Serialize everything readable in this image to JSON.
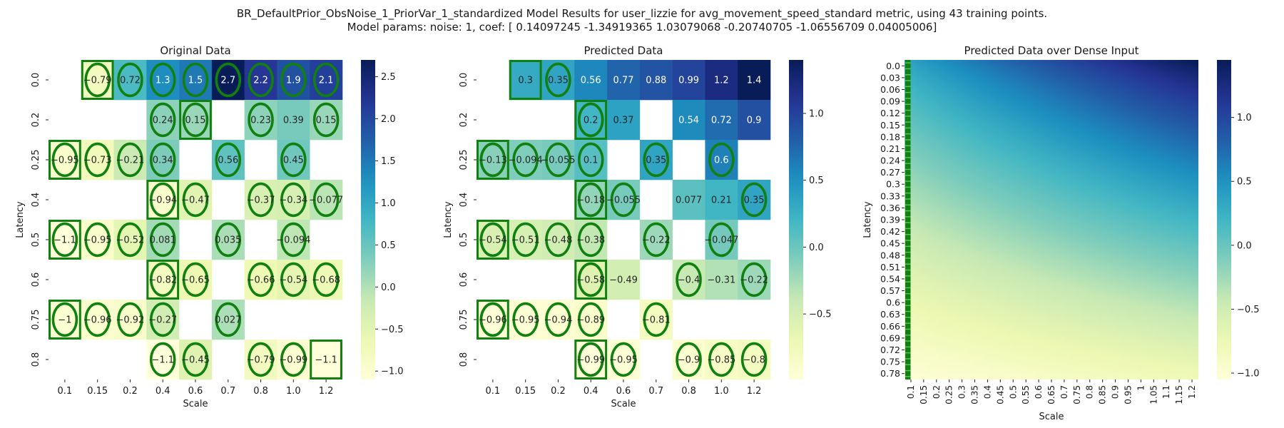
{
  "figure": {
    "title_line1": "BR_DefaultPrior_ObsNoise_1_PriorVar_1_standardized Model Results for user_lizzie for avg_movement_speed_standard metric, using 43 training points.",
    "title_line2": "Model params: noise: 1, coef: [ 0.14097245 -1.34919365  1.03079068 -0.20740705 -1.06556709  0.04005006]"
  },
  "colormap": {
    "name": "YlGnBu",
    "stops": [
      "#ffffd9",
      "#edf8b1",
      "#c7e9b4",
      "#7fcdbb",
      "#41b6c4",
      "#1d91c0",
      "#225ea8",
      "#253494",
      "#081d58"
    ]
  },
  "marker_color": "#108010",
  "chart_data": [
    {
      "type": "heatmap",
      "title": "Original Data",
      "xlabel": "Scale",
      "ylabel": "Latency",
      "x_categories": [
        "0.1",
        "0.15",
        "0.2",
        "0.4",
        "0.6",
        "0.7",
        "0.8",
        "1.0",
        "1.2"
      ],
      "y_categories": [
        "0.0",
        "0.2",
        "0.25",
        "0.4",
        "0.5",
        "0.6",
        "0.75",
        "0.8"
      ],
      "values": [
        [
          null,
          -0.79,
          0.72,
          1.3,
          1.5,
          2.7,
          2.2,
          1.9,
          2.1
        ],
        [
          null,
          null,
          null,
          0.24,
          0.15,
          null,
          0.23,
          0.39,
          0.15
        ],
        [
          -0.95,
          -0.73,
          -0.21,
          0.34,
          null,
          0.56,
          null,
          0.45,
          null
        ],
        [
          null,
          null,
          null,
          -0.94,
          -0.47,
          null,
          -0.37,
          -0.34,
          -0.077
        ],
        [
          -1.1,
          -0.95,
          -0.52,
          0.081,
          null,
          0.035,
          null,
          -0.094,
          null
        ],
        [
          null,
          null,
          null,
          -0.82,
          -0.65,
          null,
          -0.66,
          -0.54,
          -0.68
        ],
        [
          -1,
          -0.96,
          -0.92,
          -0.27,
          null,
          0.027,
          null,
          null,
          null
        ],
        [
          null,
          null,
          null,
          -1.1,
          -0.45,
          null,
          -0.79,
          -0.99,
          -1.1
        ]
      ],
      "circles": [
        [
          0,
          2
        ],
        [
          0,
          3
        ],
        [
          0,
          4
        ],
        [
          0,
          5
        ],
        [
          0,
          6
        ],
        [
          0,
          7
        ],
        [
          0,
          8
        ],
        [
          1,
          3
        ],
        [
          1,
          6
        ],
        [
          1,
          8
        ],
        [
          2,
          1
        ],
        [
          2,
          2
        ],
        [
          2,
          3
        ],
        [
          2,
          5
        ],
        [
          2,
          7
        ],
        [
          3,
          4
        ],
        [
          3,
          6
        ],
        [
          3,
          7
        ],
        [
          3,
          8
        ],
        [
          4,
          1
        ],
        [
          4,
          2
        ],
        [
          4,
          3
        ],
        [
          4,
          5
        ],
        [
          4,
          7
        ],
        [
          5,
          4
        ],
        [
          5,
          6
        ],
        [
          5,
          7
        ],
        [
          5,
          8
        ],
        [
          6,
          1
        ],
        [
          6,
          2
        ],
        [
          6,
          3
        ],
        [
          6,
          5
        ],
        [
          7,
          3
        ],
        [
          7,
          4
        ],
        [
          7,
          6
        ],
        [
          7,
          7
        ]
      ],
      "squares": [
        [
          0,
          1
        ],
        [
          1,
          4
        ],
        [
          2,
          0
        ],
        [
          3,
          3
        ],
        [
          4,
          0
        ],
        [
          5,
          3
        ],
        [
          6,
          0
        ],
        [
          7,
          8
        ]
      ],
      "square_circles": [
        [
          0,
          1
        ],
        [
          1,
          4
        ],
        [
          2,
          0
        ],
        [
          3,
          3
        ],
        [
          4,
          0
        ],
        [
          5,
          3
        ],
        [
          6,
          0
        ]
      ],
      "vmin": -1.1,
      "vmax": 2.7,
      "colorbar_ticks": [
        -1.0,
        -0.5,
        0.0,
        0.5,
        1.0,
        1.5,
        2.0,
        2.5
      ],
      "colorbar_tick_labels": [
        "−1.0",
        "−0.5",
        "0.0",
        "0.5",
        "1.0",
        "1.5",
        "2.0",
        "2.5"
      ]
    },
    {
      "type": "heatmap",
      "title": "Predicted Data",
      "xlabel": "Scale",
      "ylabel": "Latency",
      "x_categories": [
        "0.1",
        "0.15",
        "0.2",
        "0.4",
        "0.6",
        "0.7",
        "0.8",
        "1.0",
        "1.2"
      ],
      "y_categories": [
        "0.0",
        "0.2",
        "0.25",
        "0.4",
        "0.5",
        "0.6",
        "0.75",
        "0.8"
      ],
      "values": [
        [
          null,
          0.3,
          0.35,
          0.56,
          0.77,
          0.88,
          0.99,
          1.2,
          1.4
        ],
        [
          null,
          null,
          null,
          0.2,
          0.37,
          null,
          0.54,
          0.72,
          0.9
        ],
        [
          -0.13,
          -0.094,
          -0.055,
          0.1,
          null,
          0.35,
          null,
          0.6,
          null
        ],
        [
          null,
          null,
          null,
          -0.18,
          -0.055,
          null,
          0.077,
          0.21,
          0.35
        ],
        [
          -0.54,
          -0.51,
          -0.48,
          -0.38,
          null,
          -0.22,
          null,
          -0.047,
          null
        ],
        [
          null,
          null,
          null,
          -0.58,
          -0.49,
          null,
          -0.4,
          -0.31,
          -0.22
        ],
        [
          -0.96,
          -0.95,
          -0.94,
          -0.89,
          null,
          -0.81,
          null,
          null,
          null
        ],
        [
          null,
          null,
          null,
          -0.99,
          -0.95,
          null,
          -0.9,
          -0.85,
          -0.8
        ]
      ],
      "circles": [
        [
          0,
          2
        ],
        [
          1,
          3
        ],
        [
          2,
          0
        ],
        [
          2,
          1
        ],
        [
          2,
          2
        ],
        [
          2,
          3
        ],
        [
          2,
          5
        ],
        [
          2,
          7
        ],
        [
          3,
          3
        ],
        [
          3,
          4
        ],
        [
          3,
          8
        ],
        [
          4,
          0
        ],
        [
          4,
          1
        ],
        [
          4,
          2
        ],
        [
          4,
          3
        ],
        [
          4,
          5
        ],
        [
          4,
          7
        ],
        [
          5,
          3
        ],
        [
          5,
          6
        ],
        [
          5,
          8
        ],
        [
          6,
          0
        ],
        [
          6,
          1
        ],
        [
          6,
          2
        ],
        [
          6,
          3
        ],
        [
          6,
          5
        ],
        [
          7,
          3
        ],
        [
          7,
          4
        ],
        [
          7,
          6
        ],
        [
          7,
          7
        ],
        [
          7,
          8
        ]
      ],
      "squares": [
        [
          0,
          1
        ],
        [
          1,
          3
        ],
        [
          2,
          0
        ],
        [
          3,
          3
        ],
        [
          4,
          0
        ],
        [
          5,
          3
        ],
        [
          6,
          0
        ],
        [
          7,
          3
        ]
      ],
      "square_circles": [
        [
          1,
          3
        ],
        [
          2,
          0
        ],
        [
          3,
          3
        ],
        [
          4,
          0
        ],
        [
          5,
          3
        ],
        [
          6,
          0
        ],
        [
          7,
          3
        ]
      ],
      "vmin": -0.99,
      "vmax": 1.4,
      "colorbar_ticks": [
        -0.5,
        0.0,
        0.5,
        1.0
      ],
      "colorbar_tick_labels": [
        "−0.5",
        "0.0",
        "0.5",
        "1.0"
      ]
    },
    {
      "type": "heatmap",
      "title": "Predicted Data over Dense Input",
      "xlabel": "Scale",
      "ylabel": "Latency",
      "x_categories": [
        "0.1",
        "0.15",
        "0.2",
        "0.25",
        "0.3",
        "0.35",
        "0.4",
        "0.45",
        "0.5",
        "0.55",
        "0.6",
        "0.65",
        "0.7",
        "0.75",
        "0.8",
        "0.85",
        "0.9",
        "0.95",
        "1",
        "1.05",
        "1.1",
        "1.15",
        "1.2"
      ],
      "y_categories": [
        "0.0",
        "0.03",
        "0.06",
        "0.09",
        "0.12",
        "0.15",
        "0.18",
        "0.21",
        "0.24",
        "0.27",
        "0.3",
        "0.33",
        "0.36",
        "0.39",
        "0.42",
        "0.45",
        "0.48",
        "0.51",
        "0.54",
        "0.57",
        "0.6",
        "0.63",
        "0.66",
        "0.69",
        "0.72",
        "0.75",
        "0.78"
      ],
      "vmin": -1.05,
      "vmax": 1.45,
      "colorbar_ticks": [
        -1.0,
        -0.5,
        0.0,
        0.5,
        1.0
      ],
      "colorbar_tick_labels": [
        "−1.0",
        "−0.5",
        "0.0",
        "0.5",
        "1.0"
      ]
    }
  ]
}
